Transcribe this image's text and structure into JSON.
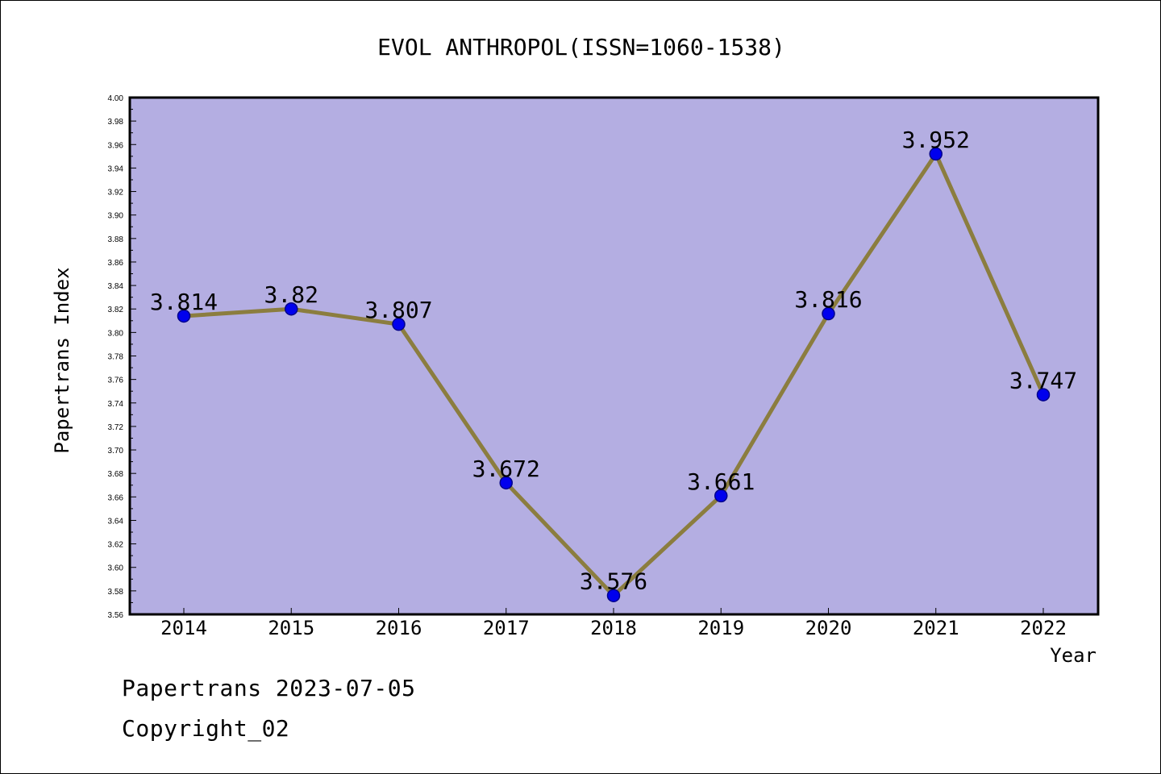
{
  "chart_data": {
    "type": "line",
    "title": "EVOL ANTHROPOL(ISSN=1060-1538)",
    "xlabel": "Year",
    "ylabel": "Papertrans Index",
    "categories": [
      "2014",
      "2015",
      "2016",
      "2017",
      "2018",
      "2019",
      "2020",
      "2021",
      "2022"
    ],
    "series": [
      {
        "values": [
          3.814,
          3.82,
          3.807,
          3.672,
          3.576,
          3.661,
          3.816,
          3.952,
          3.747
        ],
        "labels": [
          "3.814",
          "3.82",
          "3.807",
          "3.672",
          "3.576",
          "3.661",
          "3.816",
          "3.952",
          "3.747"
        ]
      }
    ],
    "ylim": [
      3.56,
      4.0
    ],
    "y_ticks": [
      "3.56",
      "3.58",
      "3.60",
      "3.62",
      "3.64",
      "3.66",
      "3.68",
      "3.70",
      "3.72",
      "3.74",
      "3.76",
      "3.78",
      "3.80",
      "3.82",
      "3.84",
      "3.86",
      "3.88",
      "3.90",
      "3.92",
      "3.94",
      "3.96",
      "3.98",
      "4.00"
    ],
    "grid": false,
    "colors": {
      "plot_background": "#b4aee2",
      "line": "#8b7d3f",
      "marker_fill": "#0000ee",
      "marker_edge": "#00008b"
    }
  },
  "footer": {
    "line1": "Papertrans 2023-07-05",
    "line2": "Copyright_02"
  }
}
